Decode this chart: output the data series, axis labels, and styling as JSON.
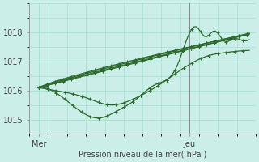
{
  "bg_color": "#cceee8",
  "grid_color": "#99ddcc",
  "line_color": "#2d6a2d",
  "xlabel": "Pression niveau de la mer( hPa )",
  "ylim": [
    1014.6,
    1018.9
  ],
  "xlim": [
    0,
    72
  ],
  "yticks": [
    1015,
    1016,
    1017,
    1018
  ],
  "xtick_positions": [
    3,
    51
  ],
  "xtick_labels": [
    "Mer",
    "Jeu"
  ],
  "vline_x": 51
}
